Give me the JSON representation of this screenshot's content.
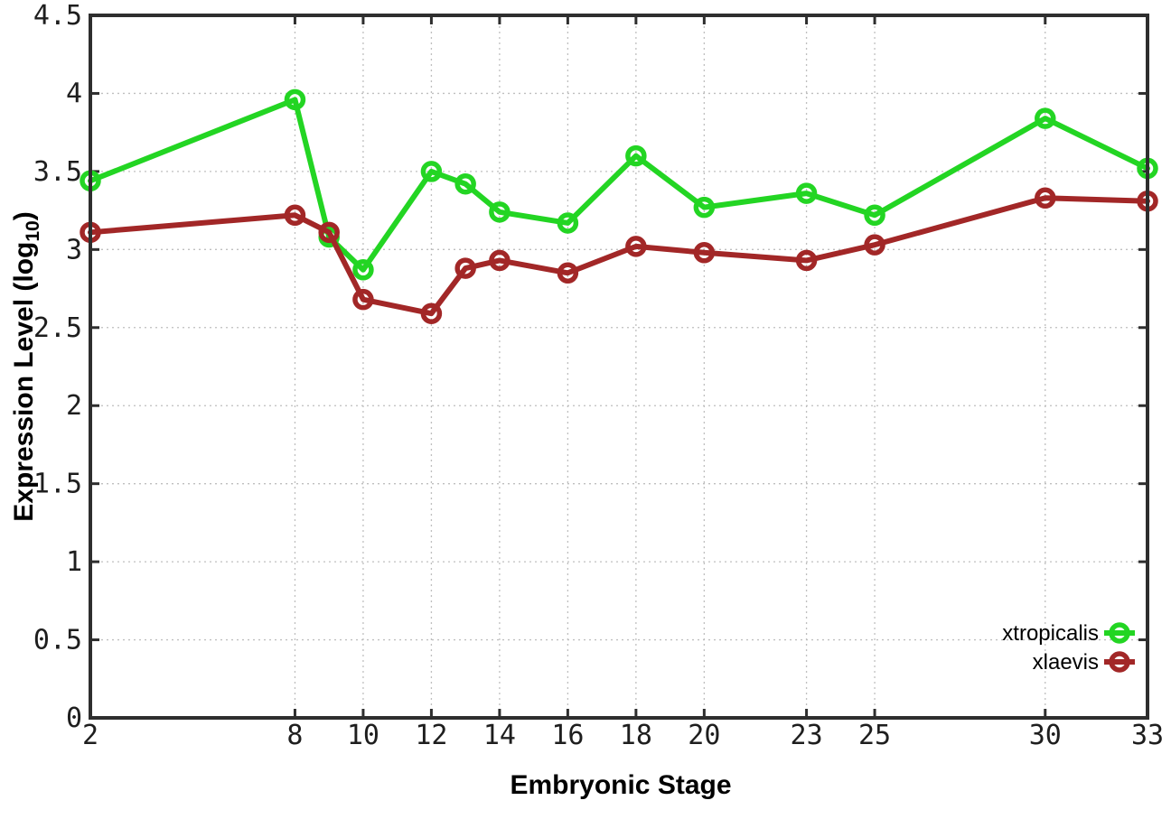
{
  "chart_data": {
    "type": "line",
    "title": "",
    "xlabel": "Embryonic Stage",
    "ylabel": {
      "main": "Expression Level (log",
      "sub": "10",
      "end": ")"
    },
    "x": [
      2,
      8,
      9,
      10,
      12,
      13,
      14,
      16,
      18,
      20,
      23,
      25,
      30,
      33
    ],
    "series": [
      {
        "name": "xtropicalis",
        "color": "#23d523",
        "values": [
          3.44,
          3.96,
          3.08,
          2.87,
          3.5,
          3.42,
          3.24,
          3.17,
          3.6,
          3.27,
          3.36,
          3.22,
          3.84,
          3.52
        ]
      },
      {
        "name": "xlaevis",
        "color": "#a22727",
        "values": [
          3.11,
          3.22,
          3.11,
          2.68,
          2.59,
          2.88,
          2.93,
          2.85,
          3.02,
          2.98,
          2.93,
          3.03,
          3.33,
          3.31
        ]
      }
    ],
    "xlim": [
      2,
      33
    ],
    "ylim": [
      0,
      4.5
    ],
    "xticks": [
      2,
      8,
      10,
      12,
      14,
      16,
      18,
      20,
      23,
      25,
      30,
      33
    ],
    "xtick_labels": [
      "2",
      "8",
      "10",
      "12",
      "14",
      "16",
      "18",
      "20",
      "23",
      "25",
      "30",
      "33"
    ],
    "yticks": [
      0,
      0.5,
      1,
      1.5,
      2,
      2.5,
      3,
      3.5,
      4,
      4.5
    ],
    "ytick_labels": [
      "0",
      "0.5",
      "1",
      "1.5",
      "2",
      "2.5",
      "3",
      "3.5",
      "4",
      "4.5"
    ],
    "grid": true,
    "legend_position": "inside-bottom-right",
    "marker": "open-circle",
    "background_color": "#ffffff",
    "axis_color": "#2e2e2e",
    "grid_color": "#bfbfbf"
  }
}
